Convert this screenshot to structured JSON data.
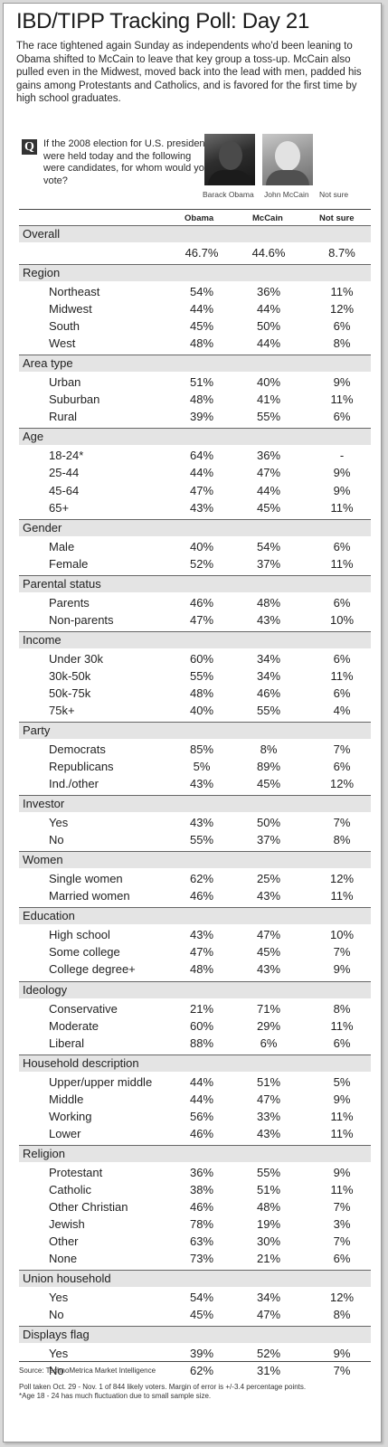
{
  "title": "IBD/TIPP  Tracking Poll: Day 21",
  "intro": "The race tightened again Sunday as independents who'd been leaning to Obama shifted to McCain to leave that key group a toss-up. McCain also pulled even in the Midwest, moved back into the lead with men, padded his gains among Protestants and Catholics, and is favored for the first time by high school graduates.",
  "question": {
    "badge": "Q",
    "text": "If the 2008 election for U.S. president were held today and the following were candidates, for whom would you vote?"
  },
  "captions": [
    "Barack Obama",
    "John McCain",
    "Not sure"
  ],
  "chart_data": {
    "type": "table",
    "columns": [
      "Obama",
      "McCain",
      "Not sure"
    ],
    "sections": [
      {
        "name": "Overall",
        "rows": [
          {
            "label": "",
            "values": [
              "46.7%",
              "44.6%",
              "8.7%"
            ]
          }
        ]
      },
      {
        "name": "Region",
        "rows": [
          {
            "label": "Northeast",
            "values": [
              "54%",
              "36%",
              "11%"
            ]
          },
          {
            "label": "Midwest",
            "values": [
              "44%",
              "44%",
              "12%"
            ]
          },
          {
            "label": "South",
            "values": [
              "45%",
              "50%",
              "6%"
            ]
          },
          {
            "label": "West",
            "values": [
              "48%",
              "44%",
              "8%"
            ]
          }
        ]
      },
      {
        "name": "Area type",
        "rows": [
          {
            "label": "Urban",
            "values": [
              "51%",
              "40%",
              "9%"
            ]
          },
          {
            "label": "Suburban",
            "values": [
              "48%",
              "41%",
              "11%"
            ]
          },
          {
            "label": "Rural",
            "values": [
              "39%",
              "55%",
              "6%"
            ]
          }
        ]
      },
      {
        "name": "Age",
        "rows": [
          {
            "label": "18-24*",
            "values": [
              "64%",
              "36%",
              "-"
            ]
          },
          {
            "label": "25-44",
            "values": [
              "44%",
              "47%",
              "9%"
            ]
          },
          {
            "label": "45-64",
            "values": [
              "47%",
              "44%",
              "9%"
            ]
          },
          {
            "label": "65+",
            "values": [
              "43%",
              "45%",
              "11%"
            ]
          }
        ]
      },
      {
        "name": "Gender",
        "rows": [
          {
            "label": "Male",
            "values": [
              "40%",
              "54%",
              "6%"
            ]
          },
          {
            "label": "Female",
            "values": [
              "52%",
              "37%",
              "11%"
            ]
          }
        ]
      },
      {
        "name": "Parental status",
        "rows": [
          {
            "label": "Parents",
            "values": [
              "46%",
              "48%",
              "6%"
            ]
          },
          {
            "label": "Non-parents",
            "values": [
              "47%",
              "43%",
              "10%"
            ]
          }
        ]
      },
      {
        "name": "Income",
        "rows": [
          {
            "label": "Under 30k",
            "values": [
              "60%",
              "34%",
              "6%"
            ]
          },
          {
            "label": "30k-50k",
            "values": [
              "55%",
              "34%",
              "11%"
            ]
          },
          {
            "label": "50k-75k",
            "values": [
              "48%",
              "46%",
              "6%"
            ]
          },
          {
            "label": "75k+",
            "values": [
              "40%",
              "55%",
              "4%"
            ]
          }
        ]
      },
      {
        "name": "Party",
        "rows": [
          {
            "label": "Democrats",
            "values": [
              "85%",
              "8%",
              "7%"
            ]
          },
          {
            "label": "Republicans",
            "values": [
              "5%",
              "89%",
              "6%"
            ]
          },
          {
            "label": "Ind./other",
            "values": [
              "43%",
              "45%",
              "12%"
            ]
          }
        ]
      },
      {
        "name": "Investor",
        "rows": [
          {
            "label": "Yes",
            "values": [
              "43%",
              "50%",
              "7%"
            ]
          },
          {
            "label": "No",
            "values": [
              "55%",
              "37%",
              "8%"
            ]
          }
        ]
      },
      {
        "name": "Women",
        "rows": [
          {
            "label": "Single women",
            "values": [
              "62%",
              "25%",
              "12%"
            ]
          },
          {
            "label": "Married women",
            "values": [
              "46%",
              "43%",
              "11%"
            ]
          }
        ]
      },
      {
        "name": "Education",
        "rows": [
          {
            "label": "High school",
            "values": [
              "43%",
              "47%",
              "10%"
            ]
          },
          {
            "label": "Some college",
            "values": [
              "47%",
              "45%",
              "7%"
            ]
          },
          {
            "label": "College degree+",
            "values": [
              "48%",
              "43%",
              "9%"
            ]
          }
        ]
      },
      {
        "name": "Ideology",
        "rows": [
          {
            "label": "Conservative",
            "values": [
              "21%",
              "71%",
              "8%"
            ]
          },
          {
            "label": "Moderate",
            "values": [
              "60%",
              "29%",
              "11%"
            ]
          },
          {
            "label": "Liberal",
            "values": [
              "88%",
              "6%",
              "6%"
            ]
          }
        ]
      },
      {
        "name": "Household description",
        "rows": [
          {
            "label": "Upper/upper middle",
            "values": [
              "44%",
              "51%",
              "5%"
            ]
          },
          {
            "label": "Middle",
            "values": [
              "44%",
              "47%",
              "9%"
            ]
          },
          {
            "label": "Working",
            "values": [
              "56%",
              "33%",
              "11%"
            ]
          },
          {
            "label": "Lower",
            "values": [
              "46%",
              "43%",
              "11%"
            ]
          }
        ]
      },
      {
        "name": "Religion",
        "rows": [
          {
            "label": "Protestant",
            "values": [
              "36%",
              "55%",
              "9%"
            ]
          },
          {
            "label": "Catholic",
            "values": [
              "38%",
              "51%",
              "11%"
            ]
          },
          {
            "label": "Other Christian",
            "values": [
              "46%",
              "48%",
              "7%"
            ]
          },
          {
            "label": "Jewish",
            "values": [
              "78%",
              "19%",
              "3%"
            ]
          },
          {
            "label": "Other",
            "values": [
              "63%",
              "30%",
              "7%"
            ]
          },
          {
            "label": "None",
            "values": [
              "73%",
              "21%",
              "6%"
            ]
          }
        ]
      },
      {
        "name": "Union household",
        "rows": [
          {
            "label": "Yes",
            "values": [
              "54%",
              "34%",
              "12%"
            ]
          },
          {
            "label": "No",
            "values": [
              "45%",
              "47%",
              "8%"
            ]
          }
        ]
      },
      {
        "name": "Displays flag",
        "rows": [
          {
            "label": "Yes",
            "values": [
              "39%",
              "52%",
              "9%"
            ]
          },
          {
            "label": "No",
            "values": [
              "62%",
              "31%",
              "7%"
            ]
          }
        ]
      }
    ]
  },
  "source": "Source: TechnoMetrica Market Intelligence",
  "note": "Poll taken Oct. 29 - Nov. 1 of 844 likely voters. Margin of error is +/-3.4 percentage points.\n*Age 18 - 24 has much fluctuation due to small sample size.",
  "colors": {
    "section_bar": "#e4e4e4",
    "rule": "#444444",
    "frame_border": "#9a9a9a"
  }
}
